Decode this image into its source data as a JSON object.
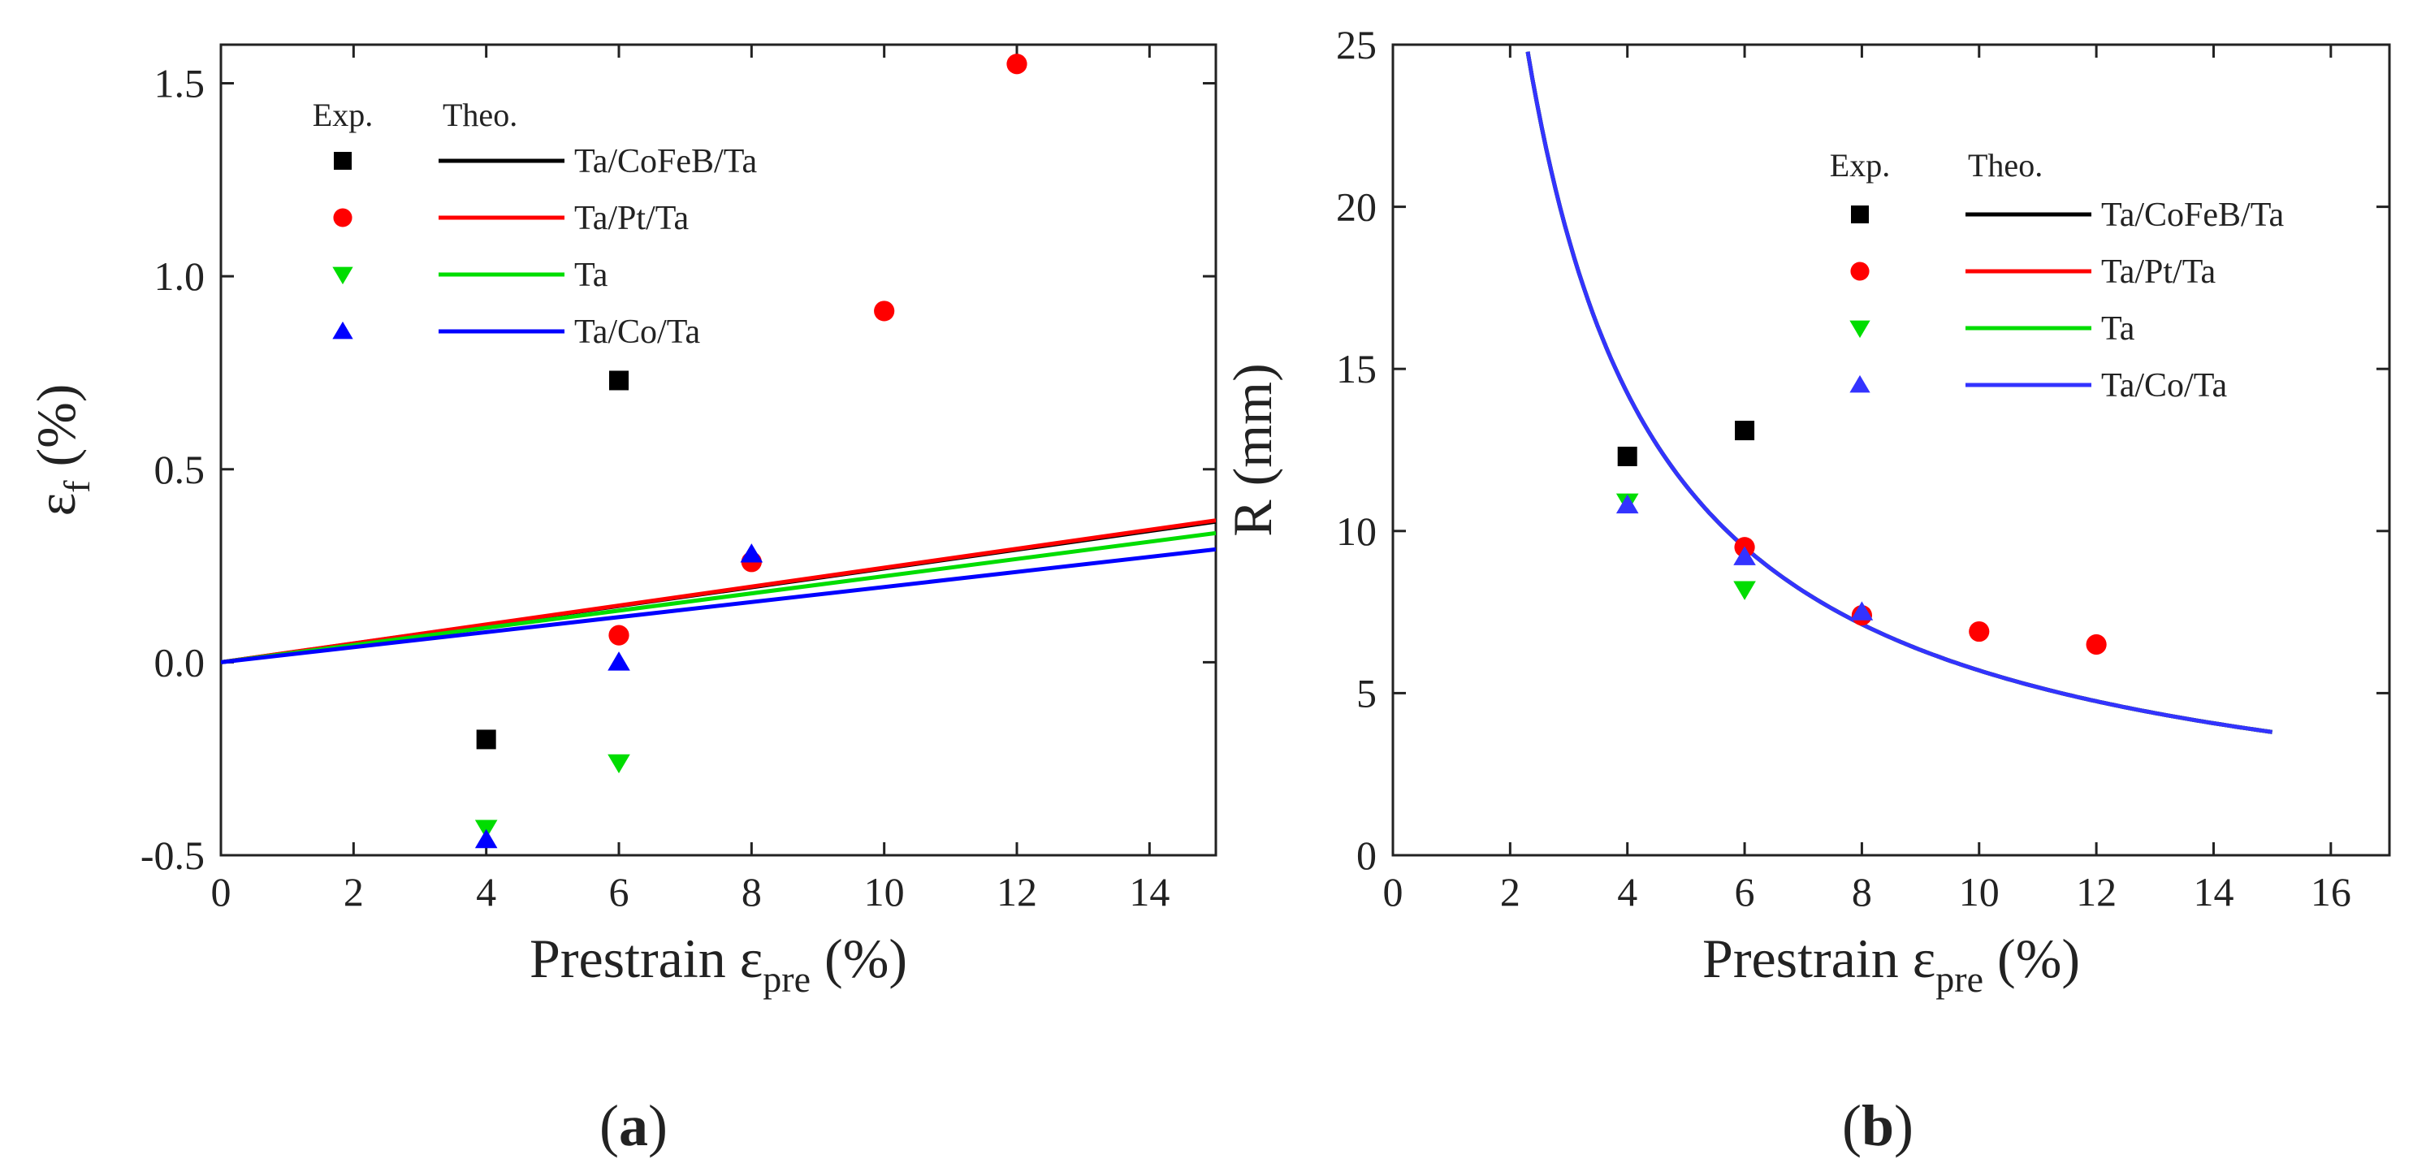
{
  "chart_data": [
    {
      "type": "scatter",
      "panel_label": "(a)",
      "panel_letter": "a",
      "xlabel_main": "Prestrain ε",
      "xlabel_sub": "pre",
      "xlabel_tail": " (%)",
      "ylabel_main": "ε",
      "ylabel_sub": "f",
      "ylabel_tail": " (%)",
      "xlim": [
        0,
        15
      ],
      "ylim": [
        -0.5,
        1.6
      ],
      "xticks": [
        0,
        2,
        4,
        6,
        8,
        10,
        12,
        14
      ],
      "yticks": [
        -0.5,
        0.0,
        0.5,
        1.0,
        1.5
      ],
      "ytick_labels": [
        "-0.5",
        "0.0",
        "0.5",
        "1.0",
        "1.5"
      ],
      "legend_placement": "top-left",
      "legend_exp_header": "Exp.",
      "legend_theo_header": "Theo.",
      "series": [
        {
          "name": "Ta/CoFeB/Ta",
          "color": "#000000",
          "marker": "square",
          "points": [
            [
              4,
              -0.2
            ],
            [
              6,
              0.73
            ]
          ],
          "theory_slope": 0.0243
        },
        {
          "name": "Ta/Pt/Ta",
          "color": "#ff0000",
          "marker": "circle",
          "points": [
            [
              6,
              0.07
            ],
            [
              8,
              0.26
            ],
            [
              10,
              0.91
            ],
            [
              12,
              1.55
            ]
          ],
          "theory_slope": 0.0245
        },
        {
          "name": "Ta",
          "color": "#00dd00",
          "marker": "triangle-down",
          "points": [
            [
              4,
              -0.43
            ],
            [
              6,
              -0.26
            ]
          ],
          "theory_slope": 0.0223
        },
        {
          "name": "Ta/Co/Ta",
          "color": "#0000ff",
          "marker": "triangle-up",
          "points": [
            [
              4,
              -0.46
            ],
            [
              6,
              0.0
            ],
            [
              8,
              0.28
            ]
          ],
          "theory_slope": 0.0195
        }
      ]
    },
    {
      "type": "scatter",
      "panel_label": "(b)",
      "panel_letter": "b",
      "xlabel_main": "Prestrain ε",
      "xlabel_sub": "pre",
      "xlabel_tail": " (%)",
      "ylabel": "R (mm)",
      "xlim": [
        0,
        17
      ],
      "ylim": [
        0,
        25
      ],
      "xticks": [
        0,
        2,
        4,
        6,
        8,
        10,
        12,
        14,
        16
      ],
      "yticks": [
        0,
        5,
        10,
        15,
        20,
        25
      ],
      "legend_placement": "top-right",
      "legend_exp_header": "Exp.",
      "legend_theo_header": "Theo.",
      "theory_curve": {
        "form": "R = k / prestrain",
        "k": 57,
        "x_range": [
          2.3,
          15
        ]
      },
      "series": [
        {
          "name": "Ta/CoFeB/Ta",
          "color": "#000000",
          "marker": "square",
          "points": [
            [
              4,
              12.3
            ],
            [
              6,
              13.1
            ]
          ]
        },
        {
          "name": "Ta/Pt/Ta",
          "color": "#ff0000",
          "marker": "circle",
          "points": [
            [
              6,
              9.5
            ],
            [
              8,
              7.4
            ],
            [
              10,
              6.9
            ],
            [
              12,
              6.5
            ]
          ]
        },
        {
          "name": "Ta",
          "color": "#00dd00",
          "marker": "triangle-down",
          "points": [
            [
              4,
              10.9
            ],
            [
              6,
              8.2
            ]
          ]
        },
        {
          "name": "Ta/Co/Ta",
          "color": "#3333ff",
          "marker": "triangle-up",
          "points": [
            [
              4,
              10.8
            ],
            [
              6,
              9.2
            ],
            [
              8,
              7.5
            ]
          ]
        }
      ]
    }
  ]
}
